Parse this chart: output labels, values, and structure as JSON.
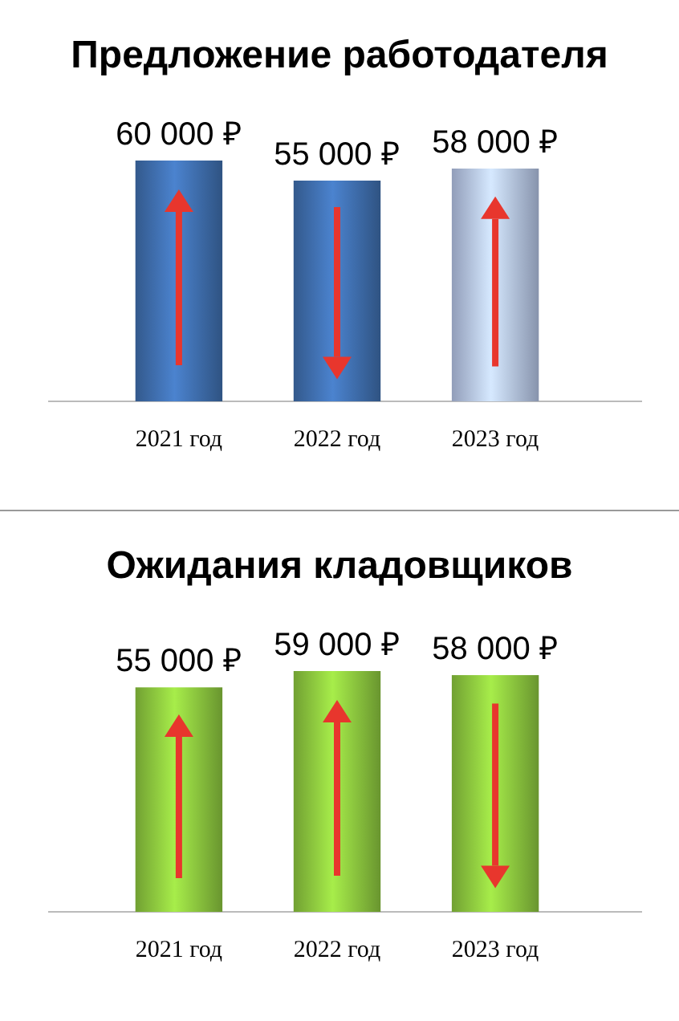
{
  "chart_data": [
    {
      "type": "bar",
      "title": "Предложение работодателя",
      "categories": [
        "2021 год",
        "2022 год",
        "2023 год"
      ],
      "values": [
        60000,
        55000,
        58000
      ],
      "colors": [
        "#3f6ead",
        "#3f6ead",
        "#b3c3e5"
      ],
      "value_labels": [
        "60 000 ₽",
        "55 000 ₽",
        "58 000 ₽"
      ]
    },
    {
      "type": "bar",
      "title": "Ожидания кладовщиков",
      "categories": [
        "2021 год",
        "2022 год",
        "2023 год"
      ],
      "values": [
        55000,
        59000,
        58000
      ],
      "colors": [
        "#8cc63e",
        "#8cc63e",
        "#8cc63e"
      ],
      "value_labels": [
        "55 000 ₽",
        "59 000 ₽",
        "58 000 ₽"
      ]
    }
  ]
}
